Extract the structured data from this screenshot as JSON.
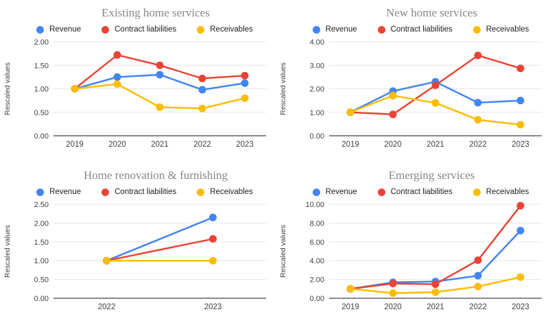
{
  "page": {
    "background": "#ffffff"
  },
  "palette": {
    "grid_color": "#e6e6e6",
    "axis_color": "#616161",
    "tick_label_color": "#3c4043",
    "title_color": "#878787",
    "legend_text_color": "#202124"
  },
  "chart_data": [
    {
      "type": "line",
      "title": "Existing home services",
      "ylabel": "Rescaled values",
      "categories": [
        "2019",
        "2020",
        "2021",
        "2022",
        "2023"
      ],
      "ylim": [
        0,
        2
      ],
      "ytick_step": 0.5,
      "grid": true,
      "legend_position": "top",
      "series": [
        {
          "name": "Revenue",
          "color": "#4285F4",
          "values": [
            1.0,
            1.25,
            1.3,
            0.98,
            1.12
          ]
        },
        {
          "name": "Contract liabilities",
          "color": "#EA4335",
          "values": [
            1.0,
            1.72,
            1.5,
            1.22,
            1.28
          ]
        },
        {
          "name": "Receivables",
          "color": "#FBBC04",
          "values": [
            1.0,
            1.1,
            0.61,
            0.58,
            0.8
          ]
        }
      ]
    },
    {
      "type": "line",
      "title": "New home services",
      "ylabel": "Rescaled values",
      "categories": [
        "2019",
        "2020",
        "2021",
        "2022",
        "2023"
      ],
      "ylim": [
        0,
        4
      ],
      "ytick_step": 1,
      "grid": true,
      "legend_position": "top",
      "series": [
        {
          "name": "Revenue",
          "color": "#4285F4",
          "values": [
            1.0,
            1.9,
            2.3,
            1.41,
            1.5
          ]
        },
        {
          "name": "Contract liabilities",
          "color": "#EA4335",
          "values": [
            1.0,
            0.91,
            2.15,
            3.42,
            2.87
          ]
        },
        {
          "name": "Receivables",
          "color": "#FBBC04",
          "values": [
            1.0,
            1.71,
            1.4,
            0.68,
            0.47
          ]
        }
      ]
    },
    {
      "type": "line",
      "title": "Home renovation & furnishing",
      "ylabel": "Rescaled values",
      "categories": [
        "2022",
        "2023"
      ],
      "ylim": [
        0,
        2.5
      ],
      "ytick_step": 0.5,
      "grid": true,
      "legend_position": "top",
      "series": [
        {
          "name": "Revenue",
          "color": "#4285F4",
          "values": [
            1.0,
            2.15
          ]
        },
        {
          "name": "Contract liabilities",
          "color": "#EA4335",
          "values": [
            1.0,
            1.58
          ]
        },
        {
          "name": "Receivables",
          "color": "#FBBC04",
          "values": [
            1.0,
            1.0
          ]
        }
      ]
    },
    {
      "type": "line",
      "title": "Emerging services",
      "ylabel": "Rescaled values",
      "categories": [
        "2019",
        "2020",
        "2021",
        "2022",
        "2023"
      ],
      "ylim": [
        0,
        10
      ],
      "ytick_step": 2,
      "grid": true,
      "legend_position": "top",
      "series": [
        {
          "name": "Revenue",
          "color": "#4285F4",
          "values": [
            1.0,
            1.7,
            1.78,
            2.4,
            7.2
          ]
        },
        {
          "name": "Contract liabilities",
          "color": "#EA4335",
          "values": [
            1.0,
            1.57,
            1.5,
            4.05,
            9.85
          ]
        },
        {
          "name": "Receivables",
          "color": "#FBBC04",
          "values": [
            1.0,
            0.55,
            0.65,
            1.25,
            2.25
          ]
        }
      ]
    }
  ]
}
